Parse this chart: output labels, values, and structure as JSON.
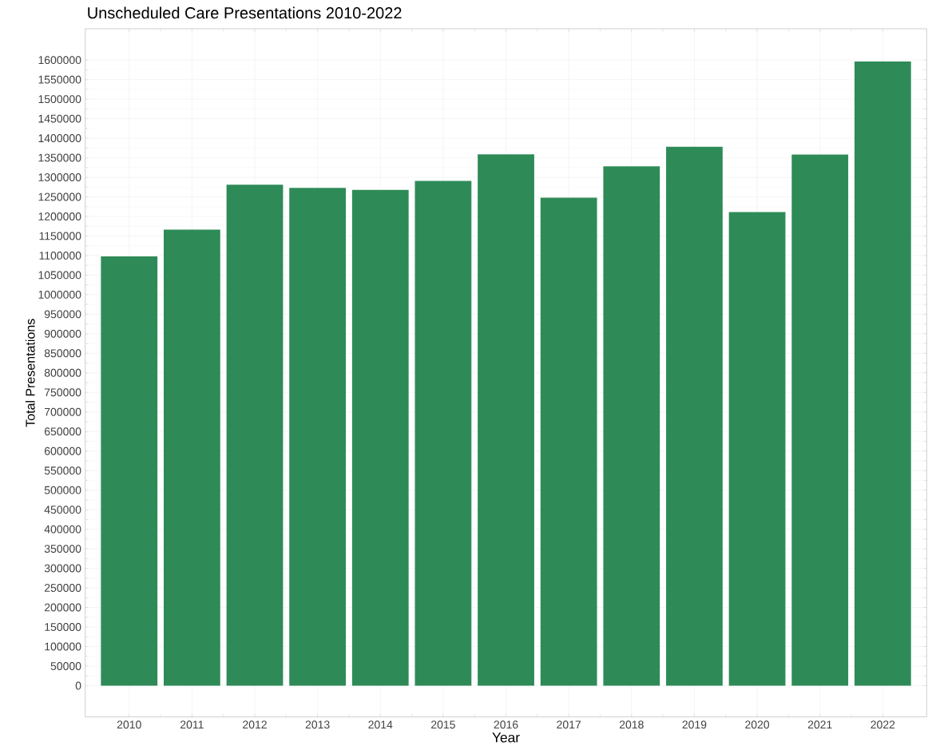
{
  "chart_data": {
    "type": "bar",
    "title": "Unscheduled Care Presentations 2010-2022",
    "xlabel": "Year",
    "ylabel": "Total Presentations",
    "categories": [
      "2010",
      "2011",
      "2012",
      "2013",
      "2014",
      "2015",
      "2016",
      "2017",
      "2018",
      "2019",
      "2020",
      "2021",
      "2022"
    ],
    "values": [
      1098000,
      1166000,
      1281000,
      1273000,
      1268000,
      1291000,
      1359000,
      1248000,
      1328000,
      1378000,
      1211000,
      1358000,
      1596000
    ],
    "color": "#2e8b57",
    "ylim": [
      -80000,
      1680000
    ],
    "yticks": [
      0,
      50000,
      100000,
      150000,
      200000,
      250000,
      300000,
      350000,
      400000,
      450000,
      500000,
      550000,
      600000,
      650000,
      700000,
      750000,
      800000,
      850000,
      900000,
      950000,
      1000000,
      1050000,
      1100000,
      1150000,
      1200000,
      1250000,
      1300000,
      1350000,
      1400000,
      1450000,
      1500000,
      1550000,
      1600000
    ],
    "grid": true
  }
}
